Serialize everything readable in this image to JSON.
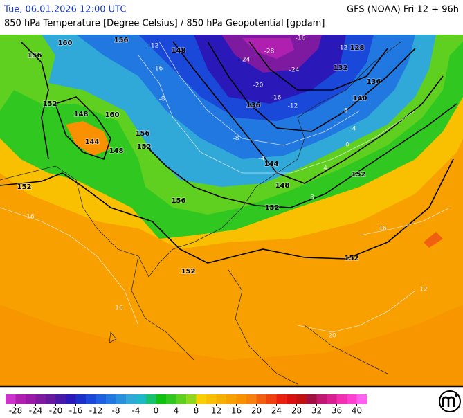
{
  "header": {
    "left": "Tue, 06.01.2026 12:00 UTC",
    "right": "GFS (NOAA) Fri 12 + 96h",
    "subtitle": "850 hPa Temperature [Degree Celsius] / 850 hPa Geopotential [gpdam]"
  },
  "contour_labels": {
    "geopotential": [
      152,
      148,
      144,
      148,
      152,
      156,
      148,
      152,
      144,
      140,
      136,
      132,
      128,
      136,
      152,
      152,
      152,
      156,
      160,
      160,
      156,
      148,
      152,
      156
    ],
    "temperature": [
      -12,
      -16,
      -8,
      -24,
      -28,
      -20,
      -16,
      -12,
      -8,
      -4,
      0,
      4,
      8,
      -4,
      -8,
      16,
      16,
      16,
      20,
      12,
      -16,
      -12,
      -24
    ]
  },
  "colorbar": {
    "range": [
      -30,
      42
    ],
    "ticks": [
      -28,
      -24,
      -20,
      -16,
      -12,
      -8,
      -4,
      0,
      4,
      8,
      12,
      16,
      20,
      24,
      28,
      32,
      36,
      40
    ],
    "colors": [
      "#cc33cc",
      "#b020b0",
      "#9a1aa8",
      "#7d1aa0",
      "#6419a0",
      "#4a18a8",
      "#2a18b8",
      "#1a30c8",
      "#1a48d8",
      "#1e60e0",
      "#2078e0",
      "#2890dc",
      "#30a8d8",
      "#20b8c8",
      "#18c070",
      "#10c010",
      "#30c820",
      "#60d020",
      "#90d820",
      "#f8d000",
      "#f8c000",
      "#f8b000",
      "#f8a000",
      "#f89000",
      "#f88010",
      "#f06010",
      "#f04010",
      "#e82010",
      "#d81010",
      "#c01010",
      "#a01040",
      "#c01870",
      "#d82090",
      "#f030b0",
      "#ff40d0",
      "#ff60f0"
    ]
  }
}
